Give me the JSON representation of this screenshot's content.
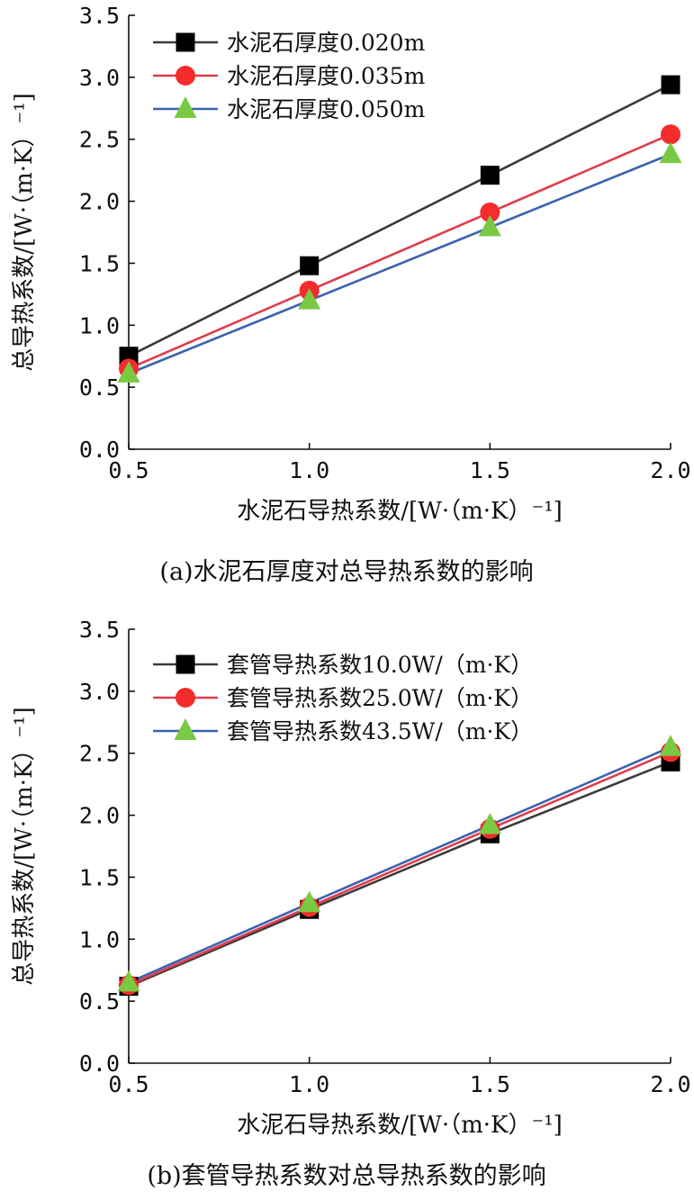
{
  "chart_data": [
    {
      "type": "line",
      "caption": "(a)水泥石厚度对总导热系数的影响",
      "xlabel": "水泥石导热系数/[W·（m·K）⁻¹]",
      "ylabel": "总导热系数/[W·（m·K）⁻¹]",
      "xlim": [
        0.5,
        2.0
      ],
      "ylim": [
        0.0,
        3.5
      ],
      "x_ticks": [
        "0.5",
        "1.0",
        "1.5",
        "2.0"
      ],
      "y_ticks": [
        "0.0",
        "0.5",
        "1.0",
        "1.5",
        "2.0",
        "2.5",
        "3.0",
        "3.5"
      ],
      "x": [
        0.5,
        1.0,
        1.5,
        2.0
      ],
      "legend_position": "top-left",
      "grid": false,
      "series": [
        {
          "name": "水泥石厚度0.020m",
          "values": [
            0.75,
            1.48,
            2.21,
            2.94
          ],
          "color": "#3a3a3a",
          "marker": "square",
          "marker_color": "#000000"
        },
        {
          "name": "水泥石厚度0.035m",
          "values": [
            0.65,
            1.28,
            1.91,
            2.54
          ],
          "color": "#e03c4a",
          "marker": "circle",
          "marker_color": "#f42c2c"
        },
        {
          "name": "水泥石厚度0.050m",
          "values": [
            0.61,
            1.2,
            1.79,
            2.38
          ],
          "color": "#3b62b0",
          "marker": "triangle",
          "marker_color": "#7ac943"
        }
      ]
    },
    {
      "type": "line",
      "caption": "(b)套管导热系数对总导热系数的影响",
      "xlabel": "水泥石导热系数/[W·（m·K）⁻¹]",
      "ylabel": "总导热系数/[W·（m·K）⁻¹]",
      "xlim": [
        0.5,
        2.0
      ],
      "ylim": [
        0.0,
        3.5
      ],
      "x_ticks": [
        "0.5",
        "1.0",
        "1.5",
        "2.0"
      ],
      "y_ticks": [
        "0.0",
        "0.5",
        "1.0",
        "1.5",
        "2.0",
        "2.5",
        "3.0",
        "3.5"
      ],
      "x": [
        0.5,
        1.0,
        1.5,
        2.0
      ],
      "legend_position": "top-left",
      "grid": false,
      "series": [
        {
          "name": "套管导热系数10.0W/（m·K）",
          "values": [
            0.62,
            1.24,
            1.85,
            2.43
          ],
          "color": "#3a3a3a",
          "marker": "square",
          "marker_color": "#000000"
        },
        {
          "name": "套管导热系数25.0W/（m·K）",
          "values": [
            0.63,
            1.26,
            1.89,
            2.51
          ],
          "color": "#e03c4a",
          "marker": "circle",
          "marker_color": "#f42c2c"
        },
        {
          "name": "套管导热系数43.5W/（m·K）",
          "values": [
            0.65,
            1.29,
            1.92,
            2.55
          ],
          "color": "#3b62b0",
          "marker": "triangle",
          "marker_color": "#7ac943"
        }
      ]
    }
  ]
}
